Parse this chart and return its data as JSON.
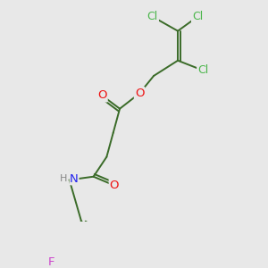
{
  "background_color": "#e8e8e8",
  "bond_color": "#3a6b28",
  "atom_colors": {
    "Cl": "#4ab54a",
    "O": "#ee1111",
    "N": "#2222ee",
    "H": "#888888",
    "F": "#cc44cc",
    "C": "#3a6b28"
  },
  "figsize": [
    3.0,
    3.0
  ],
  "dpi": 100,
  "lw": 1.4,
  "fontsize": 8.5
}
